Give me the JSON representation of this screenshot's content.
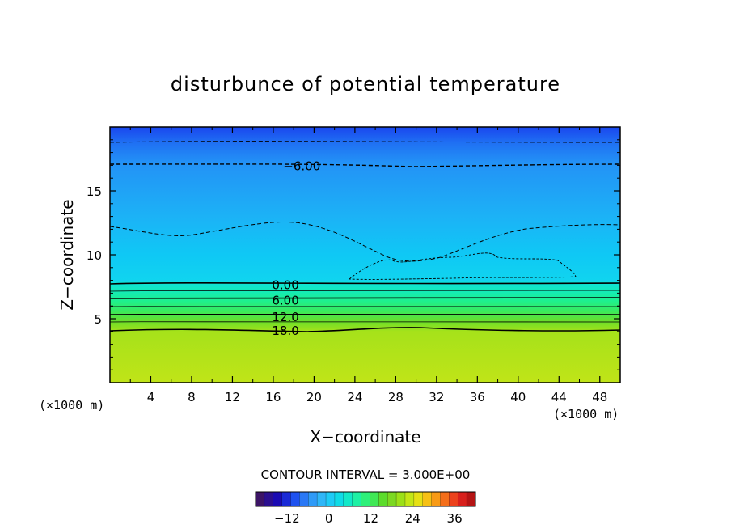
{
  "chart_data": {
    "type": "heatmap",
    "title": "disturbunce of potential temperature",
    "xlabel": "X−coordinate",
    "ylabel": "Z−coordinate",
    "x_unit": "(×1000 m)",
    "y_unit": "(×1000 m)",
    "xlim": [
      0,
      50
    ],
    "ylim": [
      0,
      20
    ],
    "x_ticks": [
      4,
      8,
      12,
      16,
      20,
      24,
      28,
      32,
      36,
      40,
      44,
      48
    ],
    "y_ticks": [
      5,
      10,
      15
    ],
    "contour_interval_text": "CONTOUR INTERVAL = 3.000E+00",
    "contour_labels": [
      {
        "text": "−6.00",
        "x": 18.8,
        "z": 17.0
      },
      {
        "text": "0.00",
        "x": 17.2,
        "z": 7.7
      },
      {
        "text": "6.00",
        "x": 17.2,
        "z": 6.5
      },
      {
        "text": "12.0",
        "x": 17.2,
        "z": 5.2
      },
      {
        "text": "18.0",
        "x": 17.2,
        "z": 4.1
      }
    ],
    "colorbar": {
      "min": -21,
      "max": 42,
      "interval": 3,
      "ticks": [
        -12,
        0,
        12,
        24,
        36
      ],
      "colors": [
        "#3c1466",
        "#2b0f8f",
        "#1a0ab3",
        "#1a2ad6",
        "#1f52ef",
        "#2a78f5",
        "#2f9af7",
        "#2fb6f7",
        "#1ecbf5",
        "#0fdbe6",
        "#12e8c8",
        "#1ef0a4",
        "#2ef07a",
        "#40e855",
        "#5cdc2c",
        "#7cd822",
        "#9ce018",
        "#c4e616",
        "#e6e014",
        "#f6c014",
        "#f89a16",
        "#f46e1a",
        "#ec421c",
        "#d8201c",
        "#b41414"
      ]
    }
  }
}
